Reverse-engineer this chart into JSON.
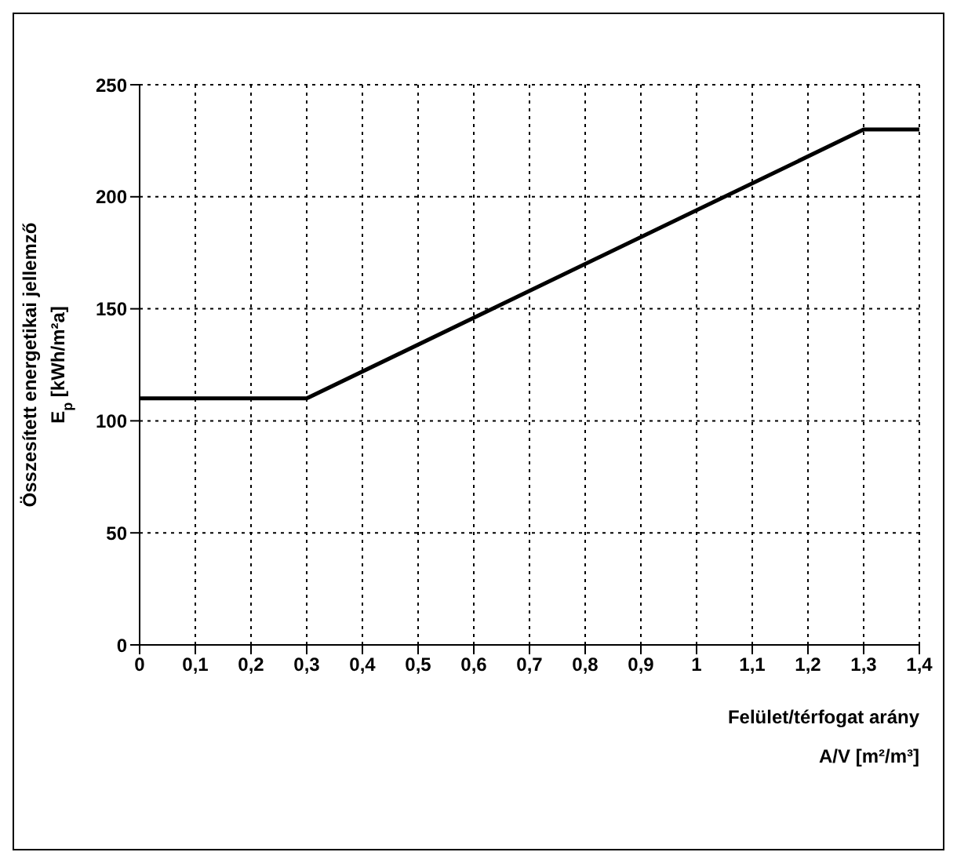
{
  "chart_data": {
    "type": "line",
    "xlabel": "Felület/térfogat arány\nA/V [m²/m³]",
    "ylabel": "Összesített energetikai jellemző\nE$_{p}$ [kWh/m²a]",
    "x": [
      0,
      0.3,
      1.3,
      1.4
    ],
    "series": [
      {
        "color": "#000000",
        "values": [
          110,
          110,
          230,
          230
        ]
      }
    ],
    "xlim": [
      0,
      1.4
    ],
    "xticks": [
      0,
      {
        "value": 0.1,
        "label": "0,1"
      },
      {
        "value": 0.2,
        "label": "0,2"
      },
      {
        "value": 0.3,
        "label": "0,3"
      },
      {
        "value": 0.4,
        "label": "0,4"
      },
      {
        "value": 0.5,
        "label": "0,5"
      },
      {
        "value": 0.6,
        "label": "0,6"
      },
      {
        "value": 0.7,
        "label": "0,7"
      },
      {
        "value": 0.8,
        "label": "0,8"
      },
      {
        "value": 0.9,
        "label": "0,9"
      },
      1,
      {
        "value": 1.1,
        "label": "1,1"
      },
      {
        "value": 1.2,
        "label": "1,2"
      },
      {
        "value": 1.3,
        "label": "1,3"
      },
      {
        "value": 1.4,
        "label": "1,4"
      }
    ],
    "ylim": [
      0,
      250
    ],
    "yticks": [
      0,
      50,
      100,
      150,
      200,
      250
    ],
    "grid": true,
    "legend": false
  }
}
